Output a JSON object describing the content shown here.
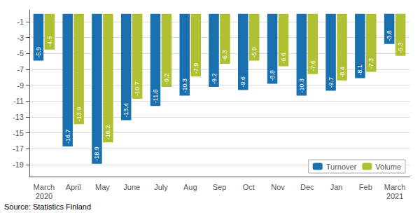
{
  "chart_data": {
    "type": "bar",
    "categories": [
      "March\n2020",
      "April",
      "May",
      "June",
      "July",
      "Aug",
      "Sep",
      "Oct",
      "Nov",
      "Dec",
      "Jan",
      "Feb",
      "March\n2021"
    ],
    "series": [
      {
        "name": "Turnover",
        "color": "#1a6faf",
        "values": [
          -5.9,
          -16.7,
          -18.9,
          -13.4,
          -11.6,
          -10.3,
          -9.2,
          -9.6,
          -8.8,
          -10.3,
          -9.7,
          -8.1,
          -3.8
        ]
      },
      {
        "name": "Volume",
        "color": "#afc132",
        "values": [
          -4.5,
          -13.9,
          -16.2,
          -10.7,
          -9.2,
          -7.9,
          -6.3,
          -5.9,
          -6.6,
          -7.6,
          -8.4,
          -7.3,
          -5.3
        ]
      }
    ],
    "ylim": [
      -20.5,
      0.5
    ],
    "yticks": [
      -19,
      -17,
      -15,
      -13,
      -11,
      -9,
      -7,
      -5,
      -3,
      -1
    ],
    "grid": true,
    "legend": "lower right",
    "data_labels": true,
    "source": "Source: Statistics Finland"
  }
}
